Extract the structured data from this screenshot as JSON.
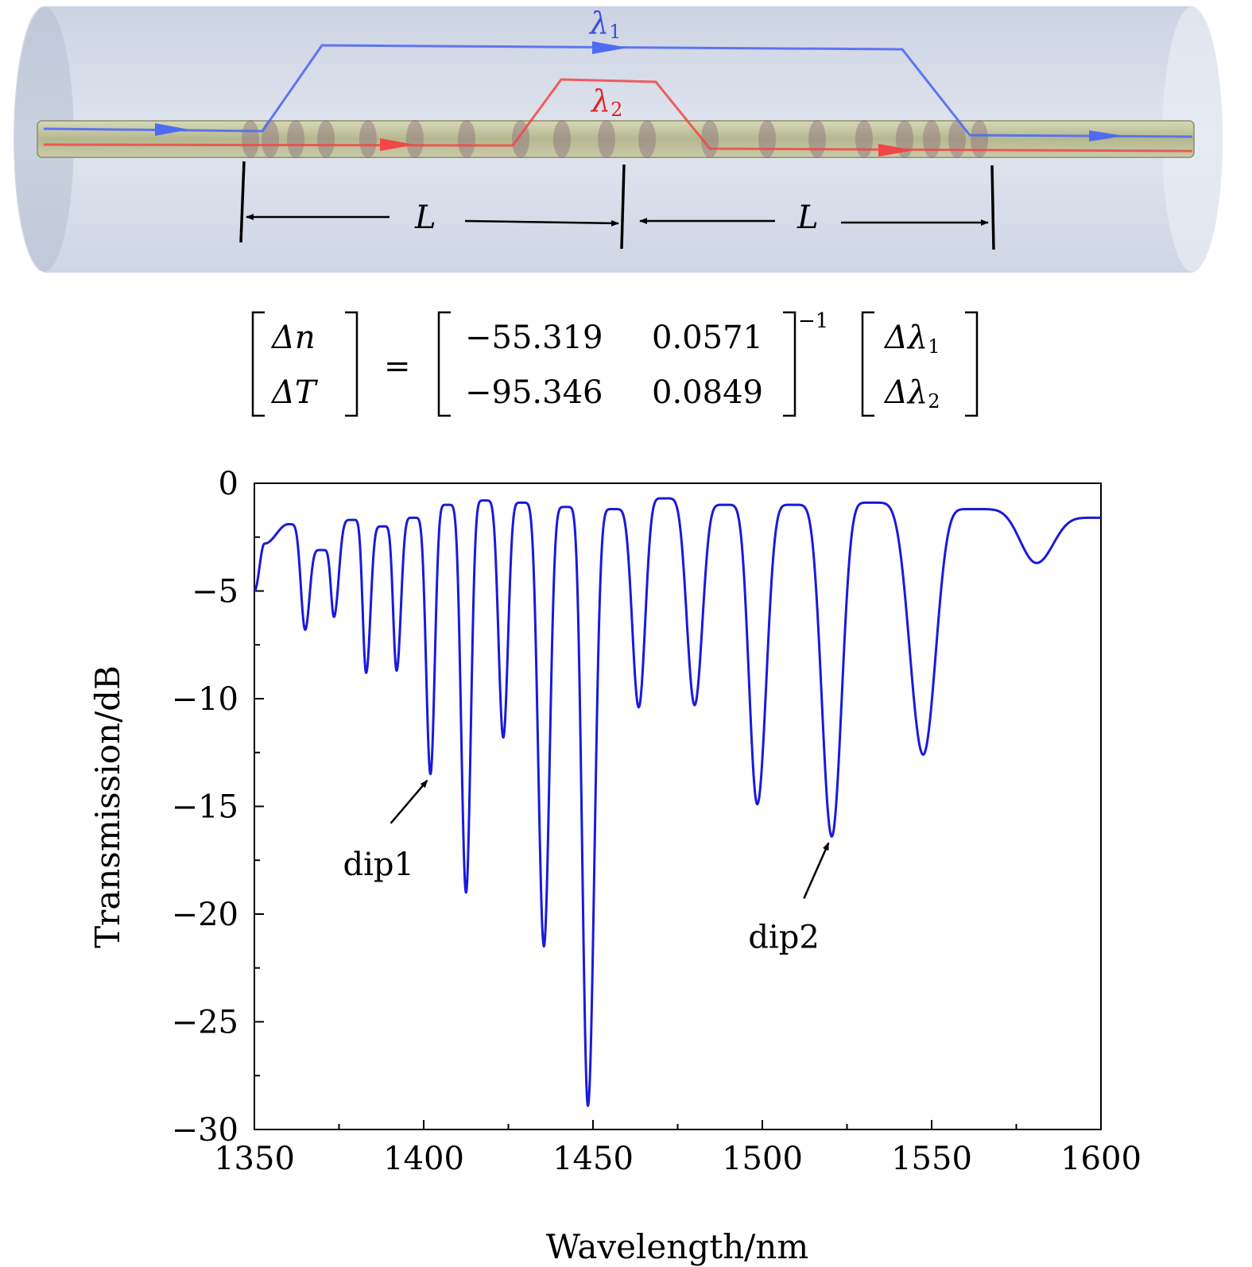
{
  "diagram": {
    "lambda1": "λ",
    "lambda1_sub": "1",
    "lambda2": "λ",
    "lambda2_sub": "2",
    "length_label_left": "L",
    "length_label_right": "L",
    "colors": {
      "lambda1": "#4f6bf2",
      "lambda2": "#f04848",
      "fiber": "#b9bc9c",
      "cladding": "#d4dbe8"
    }
  },
  "equation": {
    "lhs": [
      "Δn",
      "ΔT"
    ],
    "matrix": [
      [
        "−55.319",
        "0.0571"
      ],
      [
        "−95.346",
        "0.0849"
      ]
    ],
    "exponent": "−1",
    "rhs": [
      "Δλ",
      "Δλ"
    ],
    "rhs_subs": [
      "1",
      "2"
    ],
    "equals": "="
  },
  "chart_data": {
    "type": "line",
    "xlabel": "Wavelength/nm",
    "ylabel": "Transmission/dB",
    "xlim": [
      1350,
      1600
    ],
    "ylim": [
      -30,
      0
    ],
    "xticks": [
      1350,
      1400,
      1450,
      1500,
      1550,
      1600
    ],
    "yticks": [
      0,
      -5,
      -10,
      -15,
      -20,
      -25,
      -30
    ],
    "ytick_labels": [
      "0",
      "−5",
      "−10",
      "−15",
      "−20",
      "−25",
      "−30"
    ],
    "line_color": "#1a1adb",
    "dips": [
      {
        "x": 1365.0,
        "y": -6.8
      },
      {
        "x": 1373.5,
        "y": -6.2
      },
      {
        "x": 1383.0,
        "y": -8.8
      },
      {
        "x": 1392.0,
        "y": -8.7
      },
      {
        "x": 1402.0,
        "y": -13.5
      },
      {
        "x": 1412.5,
        "y": -19.0
      },
      {
        "x": 1423.5,
        "y": -11.8
      },
      {
        "x": 1435.5,
        "y": -21.5
      },
      {
        "x": 1448.5,
        "y": -28.9
      },
      {
        "x": 1463.5,
        "y": -10.4
      },
      {
        "x": 1480.0,
        "y": -10.3
      },
      {
        "x": 1498.5,
        "y": -14.9
      },
      {
        "x": 1520.5,
        "y": -16.4
      },
      {
        "x": 1547.5,
        "y": -12.6
      },
      {
        "x": 1581.0,
        "y": -3.7
      }
    ],
    "peaks": [
      {
        "x": 1353.0,
        "y": -2.8
      },
      {
        "x": 1360.0,
        "y": -1.9
      },
      {
        "x": 1370.0,
        "y": -3.1
      },
      {
        "x": 1379.0,
        "y": -1.7
      },
      {
        "x": 1388.0,
        "y": -2.0
      },
      {
        "x": 1397.0,
        "y": -1.6
      },
      {
        "x": 1407.0,
        "y": -1.0
      },
      {
        "x": 1418.0,
        "y": -0.8
      },
      {
        "x": 1429.0,
        "y": -0.9
      },
      {
        "x": 1442.0,
        "y": -1.1
      },
      {
        "x": 1456.0,
        "y": -1.2
      },
      {
        "x": 1471.0,
        "y": -0.7
      },
      {
        "x": 1489.0,
        "y": -1.0
      },
      {
        "x": 1509.0,
        "y": -1.0
      },
      {
        "x": 1532.0,
        "y": -0.9
      },
      {
        "x": 1562.0,
        "y": -1.2
      }
    ],
    "start": {
      "x": 1350,
      "y": -5.0
    },
    "end": {
      "x": 1600,
      "y": -1.6
    },
    "annotations": [
      {
        "text": "dip1",
        "x": 1402.0,
        "y": -13.5
      },
      {
        "text": "dip2",
        "x": 1520.5,
        "y": -16.4
      }
    ]
  }
}
